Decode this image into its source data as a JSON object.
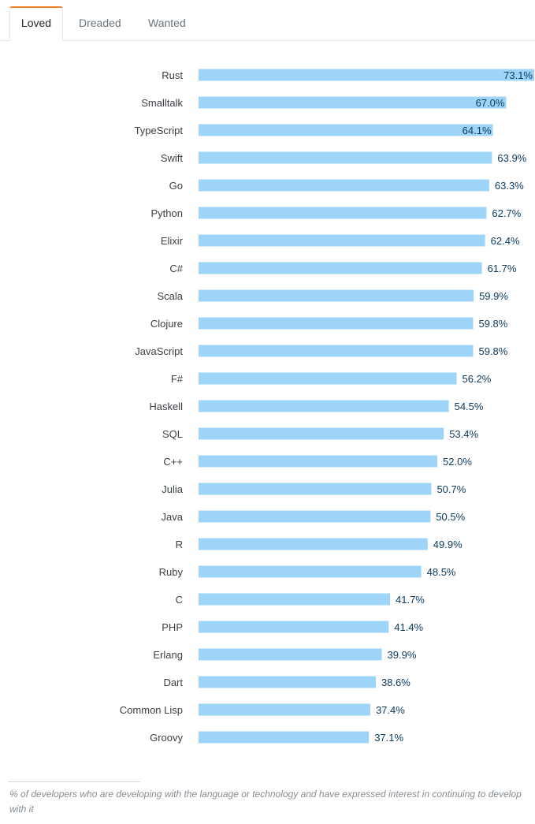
{
  "tabs": [
    {
      "label": "Loved",
      "active": true
    },
    {
      "label": "Dreaded",
      "active": false
    },
    {
      "label": "Wanted",
      "active": false
    }
  ],
  "colors": {
    "bar": "#9fd4f9",
    "accent": "#f48024",
    "value_text": "#0c3c60"
  },
  "chart_data": {
    "type": "bar",
    "orientation": "horizontal",
    "categories": [
      "Rust",
      "Smalltalk",
      "TypeScript",
      "Swift",
      "Go",
      "Python",
      "Elixir",
      "C#",
      "Scala",
      "Clojure",
      "JavaScript",
      "F#",
      "Haskell",
      "SQL",
      "C++",
      "Julia",
      "Java",
      "R",
      "Ruby",
      "C",
      "PHP",
      "Erlang",
      "Dart",
      "Common Lisp",
      "Groovy"
    ],
    "values": [
      73.1,
      67.0,
      64.1,
      63.9,
      63.3,
      62.7,
      62.4,
      61.7,
      59.9,
      59.8,
      59.8,
      56.2,
      54.5,
      53.4,
      52.0,
      50.7,
      50.5,
      49.9,
      48.5,
      41.7,
      41.4,
      39.9,
      38.6,
      37.4,
      37.1
    ],
    "value_labels": [
      "73.1%",
      "67.0%",
      "64.1%",
      "63.9%",
      "63.3%",
      "62.7%",
      "62.4%",
      "61.7%",
      "59.9%",
      "59.8%",
      "59.8%",
      "56.2%",
      "54.5%",
      "53.4%",
      "52.0%",
      "50.7%",
      "50.5%",
      "49.9%",
      "48.5%",
      "41.7%",
      "41.4%",
      "39.9%",
      "38.6%",
      "37.4%",
      "37.1%"
    ],
    "xlim": [
      0,
      73.1
    ],
    "grid": false
  },
  "footnote": "% of developers who are developing with the language or technology and have expressed interest in continuing to develop with it"
}
